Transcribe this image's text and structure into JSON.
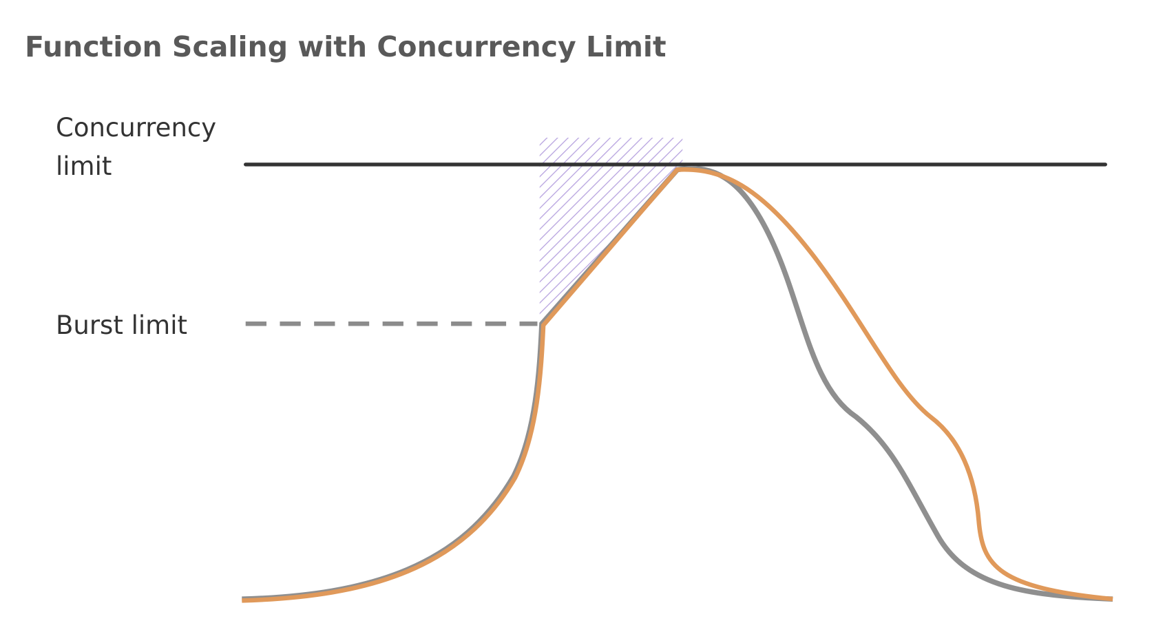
{
  "title": "Function Scaling with Concurrency Limit",
  "labels": {
    "concurrency_limit": "Concurrency limit",
    "burst_limit": "Burst limit"
  }
}
